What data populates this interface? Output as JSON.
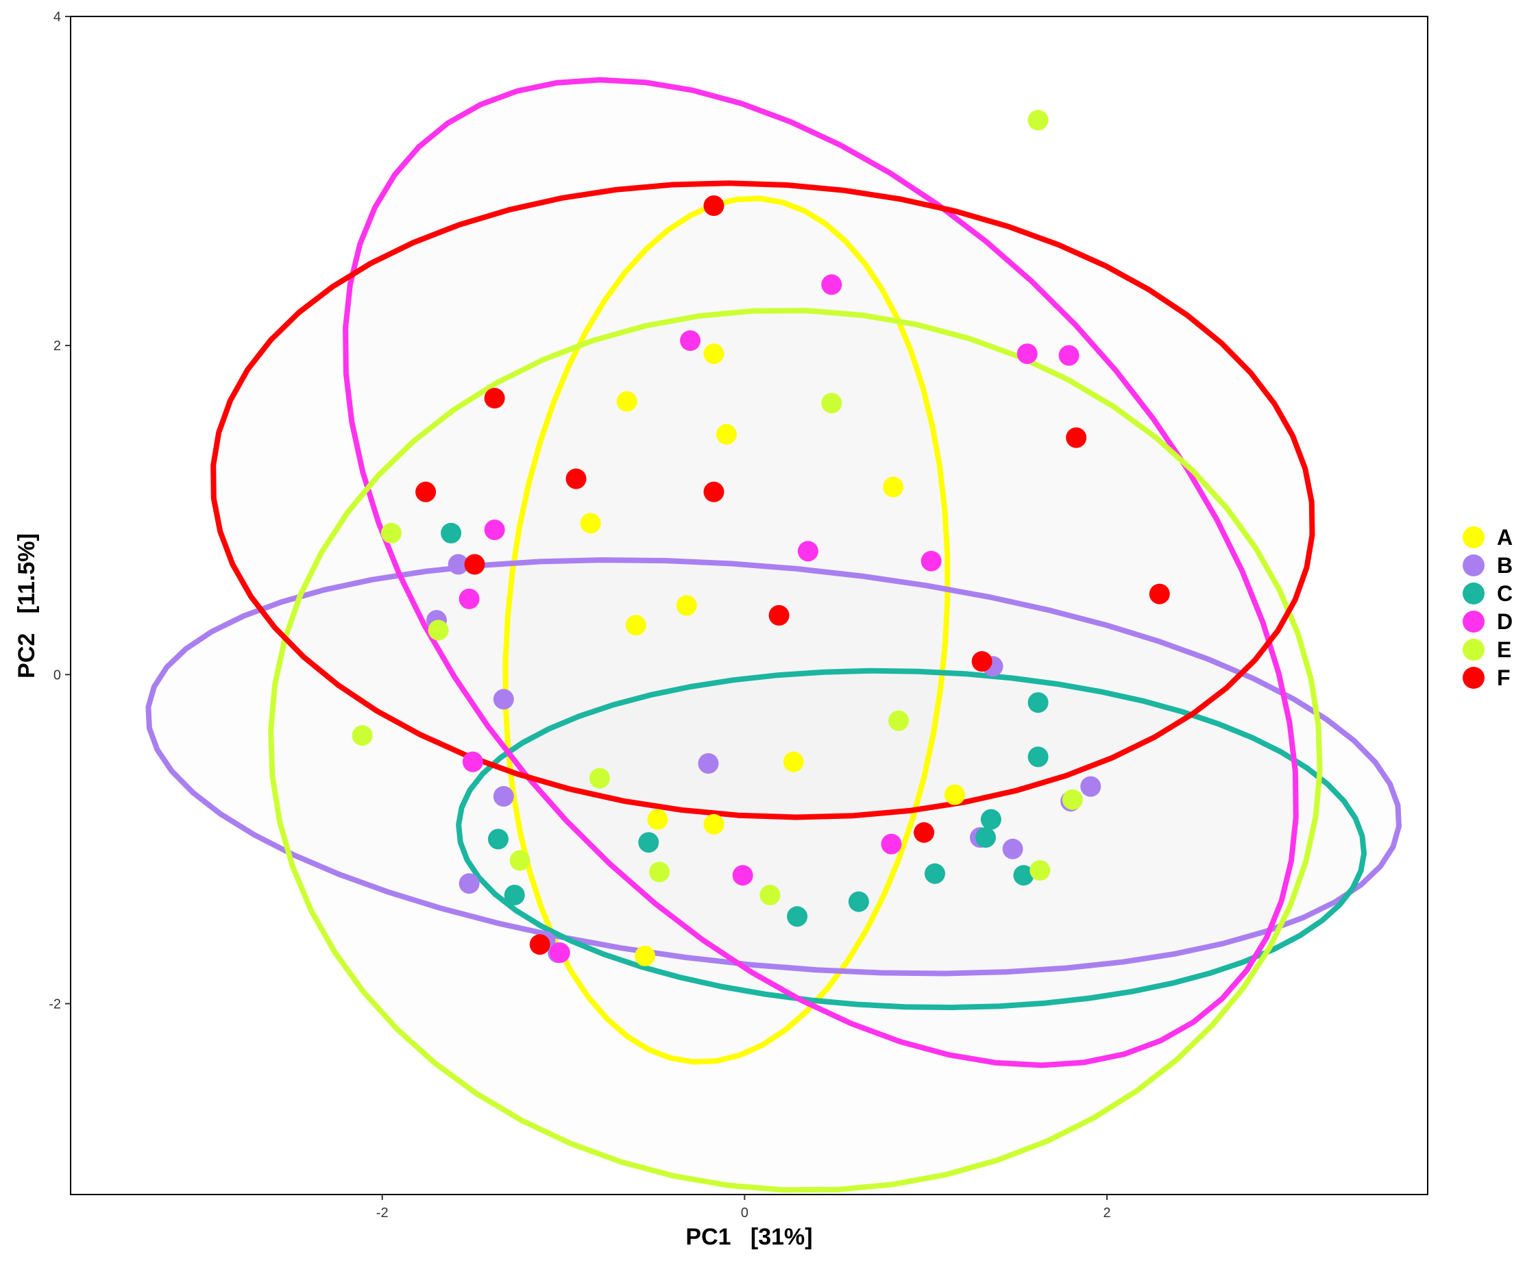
{
  "chart_data": {
    "type": "scatter",
    "title": "",
    "xlabel": "PC1   [31%]",
    "ylabel": "PC2   [11.5%]",
    "xlim": [
      -3.72,
      3.77
    ],
    "ylim": [
      -3.16,
      4.0
    ],
    "xticks": [
      -2,
      0,
      2
    ],
    "xtick_labels": [
      "-2",
      "0",
      "2"
    ],
    "yticks": [
      -2,
      0,
      2,
      4
    ],
    "ytick_labels": [
      "-2",
      "0",
      "2",
      "4"
    ],
    "grid": false,
    "legend": {
      "position": "right",
      "entries": [
        "A",
        "B",
        "C",
        "D",
        "E",
        "F"
      ]
    },
    "ellipse_style": "95% confidence ellipse per group, light grey fill",
    "series": [
      {
        "name": "A",
        "color": "#FFFF00",
        "points": [
          [
            -0.17,
            1.95
          ],
          [
            -0.65,
            1.66
          ],
          [
            -0.1,
            1.46
          ],
          [
            0.82,
            1.14
          ],
          [
            -0.85,
            0.92
          ],
          [
            -0.32,
            0.42
          ],
          [
            -0.6,
            0.3
          ],
          [
            0.27,
            -0.53
          ],
          [
            1.16,
            -0.73
          ],
          [
            -0.48,
            -0.88
          ],
          [
            -0.17,
            -0.91
          ],
          [
            -0.55,
            -1.71
          ]
        ],
        "ellipse": {
          "cx": -0.1,
          "cy": 0.27,
          "rx": 2.63,
          "ry": 1.21,
          "angle_deg": -94
        }
      },
      {
        "name": "B",
        "color": "#A97FF0",
        "points": [
          [
            -1.58,
            0.67
          ],
          [
            -1.7,
            0.33
          ],
          [
            -1.33,
            -0.15
          ],
          [
            -1.33,
            -0.74
          ],
          [
            -0.2,
            -0.54
          ],
          [
            1.37,
            0.05
          ],
          [
            1.3,
            -0.99
          ],
          [
            1.48,
            -1.06
          ],
          [
            1.8,
            -0.77
          ],
          [
            1.91,
            -0.68
          ],
          [
            -1.52,
            -1.27
          ],
          [
            -1.1,
            -1.62
          ],
          [
            -1.03,
            -1.69
          ]
        ],
        "ellipse": {
          "cx": 0.16,
          "cy": -0.56,
          "rx": 3.47,
          "ry": 1.21,
          "angle_deg": -6
        }
      },
      {
        "name": "C",
        "color": "#1BB5A0",
        "points": [
          [
            -1.62,
            0.86
          ],
          [
            -1.36,
            -1.0
          ],
          [
            -0.53,
            -1.02
          ],
          [
            -1.27,
            -1.34
          ],
          [
            0.29,
            -1.47
          ],
          [
            0.63,
            -1.38
          ],
          [
            1.05,
            -1.21
          ],
          [
            1.36,
            -0.88
          ],
          [
            1.33,
            -0.99
          ],
          [
            1.54,
            -1.22
          ],
          [
            1.62,
            -0.17
          ],
          [
            1.62,
            -0.5
          ]
        ],
        "ellipse": {
          "cx": 0.92,
          "cy": -1.0,
          "rx": 2.5,
          "ry": 1.02,
          "angle_deg": -2
        }
      },
      {
        "name": "D",
        "color": "#FF33EE",
        "points": [
          [
            0.48,
            2.37
          ],
          [
            -0.3,
            2.03
          ],
          [
            1.56,
            1.95
          ],
          [
            1.79,
            1.94
          ],
          [
            -1.38,
            0.88
          ],
          [
            0.35,
            0.75
          ],
          [
            1.03,
            0.69
          ],
          [
            -1.52,
            0.46
          ],
          [
            -1.5,
            -0.53
          ],
          [
            0.81,
            -1.03
          ],
          [
            -0.01,
            -1.22
          ],
          [
            -1.02,
            -1.69
          ]
        ],
        "ellipse": {
          "cx": 0.42,
          "cy": 0.62,
          "rx": 3.42,
          "ry": 2.04,
          "angle_deg": -53
        }
      },
      {
        "name": "E",
        "color": "#CCFF33",
        "points": [
          [
            1.62,
            3.37
          ],
          [
            0.48,
            1.65
          ],
          [
            -1.95,
            0.86
          ],
          [
            -1.69,
            0.27
          ],
          [
            -2.11,
            -0.37
          ],
          [
            0.85,
            -0.28
          ],
          [
            -0.8,
            -0.63
          ],
          [
            1.81,
            -0.76
          ],
          [
            -0.47,
            -1.2
          ],
          [
            0.14,
            -1.34
          ],
          [
            1.63,
            -1.19
          ],
          [
            -1.24,
            -1.13
          ]
        ],
        "ellipse": {
          "cx": 0.28,
          "cy": -0.46,
          "rx": 2.9,
          "ry": 2.67,
          "angle_deg": -8
        }
      },
      {
        "name": "F",
        "color": "#FF0000",
        "points": [
          [
            -0.17,
            2.85
          ],
          [
            -1.38,
            1.68
          ],
          [
            1.83,
            1.44
          ],
          [
            -0.93,
            1.19
          ],
          [
            -1.76,
            1.11
          ],
          [
            -0.17,
            1.11
          ],
          [
            -1.49,
            0.67
          ],
          [
            2.29,
            0.49
          ],
          [
            0.19,
            0.36
          ],
          [
            1.31,
            0.08
          ],
          [
            0.99,
            -0.96
          ],
          [
            -1.13,
            -1.64
          ]
        ],
        "ellipse": {
          "cx": 0.1,
          "cy": 1.06,
          "rx": 3.04,
          "ry": 1.92,
          "angle_deg": -4
        }
      }
    ]
  }
}
